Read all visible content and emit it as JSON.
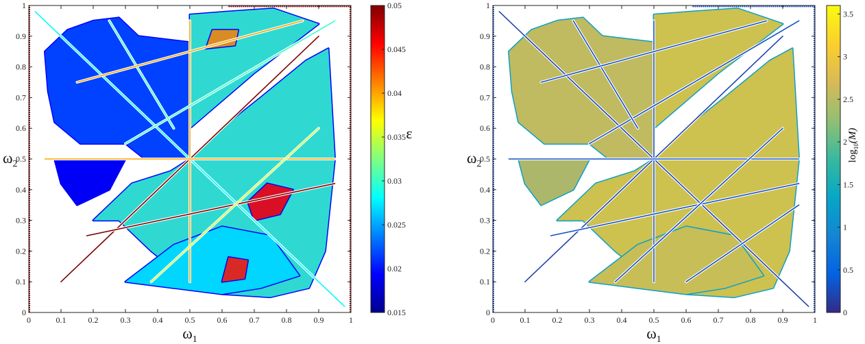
{
  "chart_data": [
    {
      "type": "heatmap",
      "title": "",
      "xlabel": "ω",
      "xlabel_sub": "1",
      "ylabel": "ω",
      "ylabel_sub": "2",
      "xlim": [
        0,
        1
      ],
      "ylim": [
        0,
        1
      ],
      "xticks": [
        0,
        0.1,
        0.2,
        0.3,
        0.4,
        0.5,
        0.6,
        0.7,
        0.8,
        0.9,
        1
      ],
      "yticks": [
        0,
        0.1,
        0.2,
        0.3,
        0.4,
        0.5,
        0.6,
        0.7,
        0.8,
        0.9,
        1
      ],
      "xtick_labels": [
        "0",
        "0.1",
        "0.2",
        "0.3",
        "0.4",
        "0.5",
        "0.6",
        "0.7",
        "0.8",
        "0.9",
        "1"
      ],
      "ytick_labels": [
        "0",
        "0.1",
        "0.2",
        "0.3",
        "0.4",
        "0.5",
        "0.6",
        "0.7",
        "0.8",
        "0.9",
        "1"
      ],
      "colormap": "jet",
      "colorbar": {
        "label": "ε",
        "range": [
          0.015,
          0.05
        ],
        "ticks": [
          0.015,
          0.02,
          0.025,
          0.03,
          0.035,
          0.04,
          0.045,
          0.05
        ],
        "tick_labels": [
          "0.015",
          "0.02",
          "0.025",
          "0.03",
          "0.035",
          "0.04",
          "0.045",
          "0.05"
        ],
        "position": "right"
      },
      "grid": false,
      "regions": [
        {
          "name": "upper-left-wing",
          "polygon": [
            [
              0.05,
              0.85
            ],
            [
              0.12,
              0.92
            ],
            [
              0.2,
              0.95
            ],
            [
              0.28,
              0.96
            ],
            [
              0.34,
              0.9
            ],
            [
              0.5,
              0.88
            ],
            [
              0.5,
              0.5
            ],
            [
              0.36,
              0.5
            ],
            [
              0.3,
              0.55
            ],
            [
              0.16,
              0.55
            ],
            [
              0.08,
              0.62
            ],
            [
              0.06,
              0.72
            ]
          ],
          "level": 0.022
        },
        {
          "name": "upper-center-wing",
          "polygon": [
            [
              0.5,
              0.97
            ],
            [
              0.62,
              0.98
            ],
            [
              0.76,
              0.99
            ],
            [
              0.9,
              0.94
            ],
            [
              0.7,
              0.78
            ],
            [
              0.5,
              0.6
            ]
          ],
          "level": 0.03
        },
        {
          "name": "upper-low-wing",
          "polygon": [
            [
              0.08,
              0.5
            ],
            [
              0.3,
              0.5
            ],
            [
              0.25,
              0.4
            ],
            [
              0.15,
              0.35
            ],
            [
              0.1,
              0.42
            ]
          ],
          "level": 0.019
        },
        {
          "name": "lower-right-lobe",
          "polygon": [
            [
              0.5,
              0.5
            ],
            [
              0.6,
              0.6
            ],
            [
              0.72,
              0.7
            ],
            [
              0.86,
              0.82
            ],
            [
              0.93,
              0.86
            ],
            [
              0.95,
              0.5
            ],
            [
              0.92,
              0.2
            ],
            [
              0.87,
              0.08
            ],
            [
              0.75,
              0.05
            ],
            [
              0.6,
              0.06
            ],
            [
              0.5,
              0.1
            ],
            [
              0.38,
              0.2
            ],
            [
              0.28,
              0.3
            ],
            [
              0.2,
              0.3
            ],
            [
              0.32,
              0.42
            ],
            [
              0.44,
              0.46
            ]
          ],
          "level": 0.03
        },
        {
          "name": "lower-bottom-lobe",
          "polygon": [
            [
              0.3,
              0.1
            ],
            [
              0.45,
              0.08
            ],
            [
              0.6,
              0.06
            ],
            [
              0.72,
              0.08
            ],
            [
              0.84,
              0.12
            ],
            [
              0.75,
              0.25
            ],
            [
              0.6,
              0.28
            ],
            [
              0.45,
              0.22
            ]
          ],
          "level": 0.028
        },
        {
          "name": "hot-spot-center",
          "polygon": [
            [
              0.7,
              0.3
            ],
            [
              0.78,
              0.32
            ],
            [
              0.82,
              0.4
            ],
            [
              0.74,
              0.42
            ],
            [
              0.68,
              0.36
            ]
          ],
          "level": 0.045
        },
        {
          "name": "hot-spot-bottom",
          "polygon": [
            [
              0.6,
              0.1
            ],
            [
              0.67,
              0.11
            ],
            [
              0.68,
              0.17
            ],
            [
              0.62,
              0.18
            ]
          ],
          "level": 0.044
        },
        {
          "name": "hot-spot-top",
          "polygon": [
            [
              0.55,
              0.86
            ],
            [
              0.64,
              0.87
            ],
            [
              0.65,
              0.92
            ],
            [
              0.57,
              0.92
            ]
          ],
          "level": 0.04
        }
      ],
      "lines": [
        {
          "name": "diagonal-main",
          "p1": [
            0.1,
            0.1
          ],
          "p2": [
            0.9,
            0.9
          ],
          "level": 0.05
        },
        {
          "name": "anti-diagonal",
          "p1": [
            0.02,
            0.98
          ],
          "p2": [
            0.98,
            0.02
          ],
          "level": 0.028
        },
        {
          "name": "vertical-half",
          "p1": [
            0.5,
            0.1
          ],
          "p2": [
            0.5,
            0.95
          ],
          "level": 0.04
        },
        {
          "name": "horizontal-half",
          "p1": [
            0.05,
            0.5
          ],
          "p2": [
            0.95,
            0.5
          ],
          "level": 0.04
        },
        {
          "name": "ray-a",
          "p1": [
            0.18,
            0.25
          ],
          "p2": [
            0.95,
            0.42
          ],
          "level": 0.05
        },
        {
          "name": "ray-b",
          "p1": [
            0.38,
            0.1
          ],
          "p2": [
            0.9,
            0.6
          ],
          "level": 0.035
        },
        {
          "name": "ray-c",
          "p1": [
            0.3,
            0.55
          ],
          "p2": [
            0.95,
            0.95
          ],
          "level": 0.03
        },
        {
          "name": "ray-d",
          "p1": [
            0.25,
            0.95
          ],
          "p2": [
            0.45,
            0.6
          ],
          "level": 0.03
        },
        {
          "name": "ray-e",
          "p1": [
            0.15,
            0.75
          ],
          "p2": [
            0.85,
            0.95
          ],
          "level": 0.04
        }
      ]
    },
    {
      "type": "heatmap",
      "title": "",
      "xlabel": "ω",
      "xlabel_sub": "1",
      "ylabel": "ω",
      "ylabel_sub": "2",
      "xlim": [
        0,
        1
      ],
      "ylim": [
        0,
        1
      ],
      "xticks": [
        0,
        0.1,
        0.2,
        0.3,
        0.4,
        0.5,
        0.6,
        0.7,
        0.8,
        0.9,
        1
      ],
      "yticks": [
        0,
        0.1,
        0.2,
        0.3,
        0.4,
        0.5,
        0.6,
        0.7,
        0.8,
        0.9,
        1
      ],
      "xtick_labels": [
        "0",
        "0.1",
        "0.2",
        "0.3",
        "0.4",
        "0.5",
        "0.6",
        "0.7",
        "0.8",
        "0.9",
        "1"
      ],
      "ytick_labels": [
        "0",
        "0.1",
        "0.2",
        "0.3",
        "0.4",
        "0.5",
        "0.6",
        "0.7",
        "0.8",
        "0.9",
        "1"
      ],
      "colormap": "parula",
      "colorbar": {
        "label": "log",
        "label_sub": "10",
        "label_tail": "(M)",
        "range": [
          0,
          3.6
        ],
        "ticks": [
          0,
          0.5,
          1,
          1.5,
          2,
          2.5,
          3,
          3.5
        ],
        "tick_labels": [
          "0",
          "0.5",
          "1",
          "1.5",
          "2",
          "2.5",
          "3",
          "3.5"
        ],
        "position": "right"
      },
      "grid": false,
      "regions": [
        {
          "name": "upper-left-wing",
          "polygon": [
            [
              0.05,
              0.85
            ],
            [
              0.12,
              0.92
            ],
            [
              0.2,
              0.95
            ],
            [
              0.28,
              0.96
            ],
            [
              0.34,
              0.9
            ],
            [
              0.5,
              0.88
            ],
            [
              0.5,
              0.5
            ],
            [
              0.36,
              0.5
            ],
            [
              0.3,
              0.55
            ],
            [
              0.16,
              0.55
            ],
            [
              0.08,
              0.62
            ],
            [
              0.06,
              0.72
            ]
          ],
          "level": 2.8
        },
        {
          "name": "upper-center-wing",
          "polygon": [
            [
              0.5,
              0.97
            ],
            [
              0.62,
              0.98
            ],
            [
              0.76,
              0.99
            ],
            [
              0.9,
              0.94
            ],
            [
              0.7,
              0.78
            ],
            [
              0.5,
              0.6
            ]
          ],
          "level": 3.0
        },
        {
          "name": "upper-low-wing",
          "polygon": [
            [
              0.08,
              0.5
            ],
            [
              0.3,
              0.5
            ],
            [
              0.25,
              0.4
            ],
            [
              0.15,
              0.35
            ],
            [
              0.1,
              0.42
            ]
          ],
          "level": 2.6
        },
        {
          "name": "lower-right-lobe",
          "polygon": [
            [
              0.5,
              0.5
            ],
            [
              0.6,
              0.6
            ],
            [
              0.72,
              0.7
            ],
            [
              0.86,
              0.82
            ],
            [
              0.93,
              0.86
            ],
            [
              0.95,
              0.5
            ],
            [
              0.92,
              0.2
            ],
            [
              0.87,
              0.08
            ],
            [
              0.75,
              0.05
            ],
            [
              0.6,
              0.06
            ],
            [
              0.5,
              0.1
            ],
            [
              0.38,
              0.2
            ],
            [
              0.28,
              0.3
            ],
            [
              0.2,
              0.3
            ],
            [
              0.32,
              0.42
            ],
            [
              0.44,
              0.46
            ]
          ],
          "level": 3.0
        },
        {
          "name": "lower-bottom-lobe",
          "polygon": [
            [
              0.3,
              0.1
            ],
            [
              0.45,
              0.08
            ],
            [
              0.6,
              0.06
            ],
            [
              0.72,
              0.08
            ],
            [
              0.84,
              0.12
            ],
            [
              0.75,
              0.25
            ],
            [
              0.6,
              0.28
            ],
            [
              0.45,
              0.22
            ]
          ],
          "level": 2.9
        }
      ],
      "lines": [
        {
          "name": "diagonal-main",
          "p1": [
            0.1,
            0.1
          ],
          "p2": [
            0.9,
            0.9
          ],
          "level": 0.2
        },
        {
          "name": "anti-diagonal",
          "p1": [
            0.02,
            0.98
          ],
          "p2": [
            0.98,
            0.02
          ],
          "level": 0.2
        },
        {
          "name": "vertical-half",
          "p1": [
            0.5,
            0.1
          ],
          "p2": [
            0.5,
            0.95
          ],
          "level": 0.3
        },
        {
          "name": "horizontal-half",
          "p1": [
            0.05,
            0.5
          ],
          "p2": [
            0.95,
            0.5
          ],
          "level": 0.3
        },
        {
          "name": "ray-a",
          "p1": [
            0.18,
            0.25
          ],
          "p2": [
            0.95,
            0.42
          ],
          "level": 0.3
        },
        {
          "name": "ray-b",
          "p1": [
            0.38,
            0.1
          ],
          "p2": [
            0.9,
            0.6
          ],
          "level": 0.3
        },
        {
          "name": "ray-c",
          "p1": [
            0.3,
            0.55
          ],
          "p2": [
            0.95,
            0.95
          ],
          "level": 0.3
        },
        {
          "name": "ray-d",
          "p1": [
            0.25,
            0.95
          ],
          "p2": [
            0.45,
            0.6
          ],
          "level": 0.3
        },
        {
          "name": "ray-e",
          "p1": [
            0.15,
            0.75
          ],
          "p2": [
            0.85,
            0.95
          ],
          "level": 0.3
        },
        {
          "name": "ray-f",
          "p1": [
            0.6,
            0.1
          ],
          "p2": [
            0.95,
            0.35
          ],
          "level": 0.3
        }
      ]
    }
  ]
}
